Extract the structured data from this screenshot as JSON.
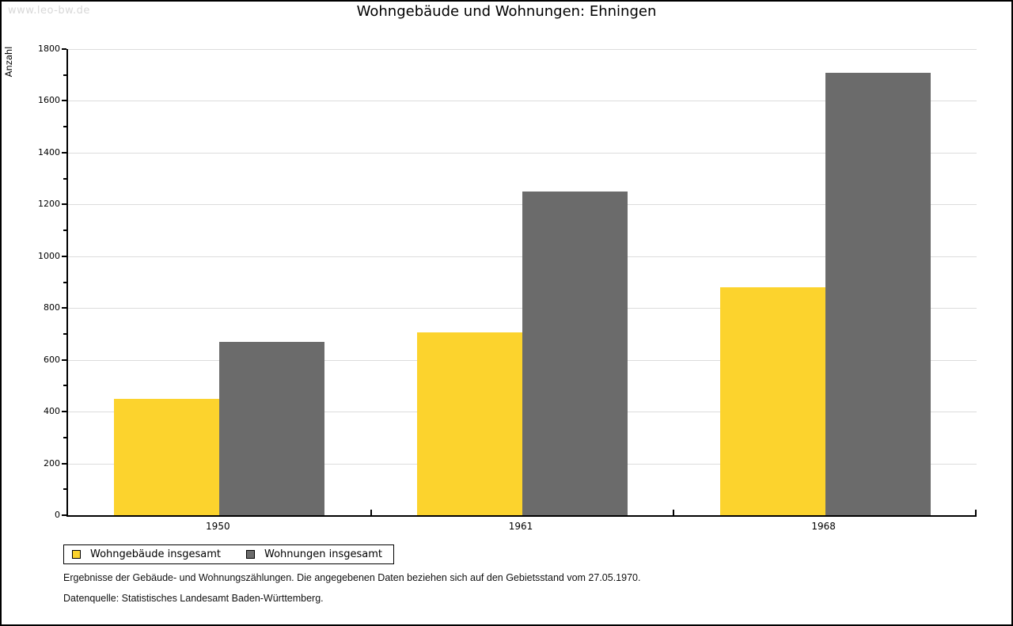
{
  "watermark": "www.leo-bw.de",
  "chart_data": {
    "type": "bar",
    "title": "Wohngebäude und Wohnungen: Ehningen",
    "ylabel": "Anzahl",
    "xlabel": "",
    "categories": [
      "1950",
      "1961",
      "1968"
    ],
    "series": [
      {
        "name": "Wohngebäude insgesamt",
        "color": "#fcd32d",
        "values": [
          450,
          705,
          880
        ]
      },
      {
        "name": "Wohnungen insgesamt",
        "color": "#6b6b6b",
        "values": [
          670,
          1250,
          1710
        ]
      }
    ],
    "ylim": [
      0,
      1800
    ],
    "ytick_step": 200,
    "ytick_labels": [
      "0",
      "200",
      "400",
      "600",
      "800",
      "1000",
      "1200",
      "1400",
      "1600",
      "1800"
    ],
    "minor_tick_step": 100,
    "grid": true,
    "legend_position": "bottom-left"
  },
  "footer": {
    "line1": "Ergebnisse der Gebäude- und Wohnungszählungen. Die angegebenen Daten beziehen sich auf den Gebietsstand vom 27.05.1970.",
    "line2": "Datenquelle: Statistisches Landesamt Baden-Württemberg."
  },
  "colors": {
    "background": "#ffffff",
    "frame_border": "#000000",
    "axis": "#000000",
    "gridline": "#dcdcdc",
    "watermark_text": "#d8d8d8",
    "bar_yellow": "#fcd32d",
    "bar_gray": "#6b6b6b"
  }
}
